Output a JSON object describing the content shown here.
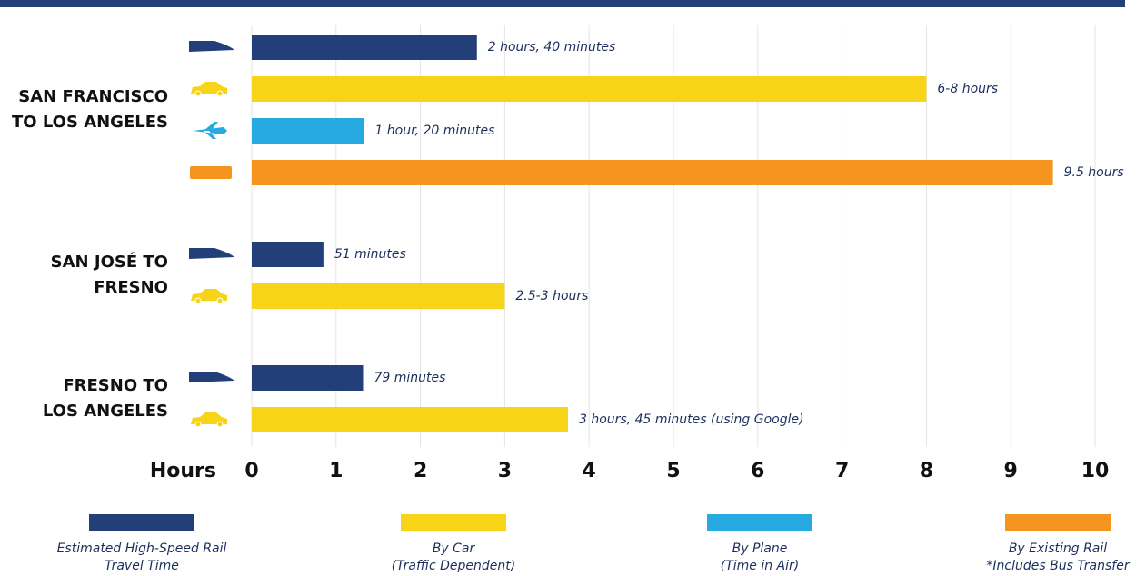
{
  "chart_data": {
    "type": "bar",
    "orientation": "horizontal",
    "categories": [
      [
        "SAN FRANCISCO",
        "TO LOS ANGELES"
      ],
      [
        "SAN JOSÉ TO",
        "FRESNO"
      ],
      [
        "FRESNO TO",
        "LOS ANGELES"
      ]
    ],
    "series": [
      {
        "name": [
          "Estimated High-Speed Rail",
          "Travel Time"
        ],
        "color": "#223f7a",
        "values": [
          2.67,
          0.85,
          1.32
        ],
        "value_labels": [
          "2 hours, 40 minutes",
          "51 minutes",
          "79 minutes"
        ]
      },
      {
        "name": [
          "By Car",
          "(Traffic Dependent)"
        ],
        "color": "#f8d418",
        "values": [
          8,
          3,
          3.75
        ],
        "value_labels": [
          "6-8 hours",
          "2.5-3 hours",
          "3 hours, 45 minutes (using Google)"
        ]
      },
      {
        "name": [
          "By Plane",
          "(Time in Air)"
        ],
        "color": "#27a9e1",
        "values": [
          1.33,
          null,
          null
        ],
        "value_labels": [
          "1 hour, 20 minutes",
          null,
          null
        ]
      },
      {
        "name": [
          "By Existing Rail",
          "*Includes Bus Transfer"
        ],
        "color": "#f5951f",
        "values": [
          9.5,
          null,
          null
        ],
        "value_labels": [
          "9.5 hours",
          null,
          null
        ]
      }
    ],
    "xlabel": "Hours",
    "xlim": [
      0,
      10
    ],
    "xticks": [
      0,
      1,
      2,
      3,
      4,
      5,
      6,
      7,
      8,
      9,
      10
    ],
    "grid": true
  }
}
